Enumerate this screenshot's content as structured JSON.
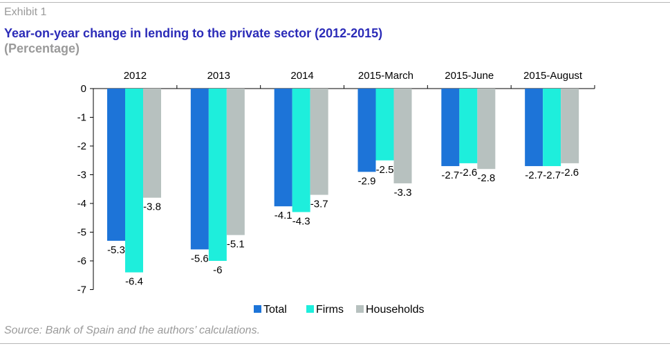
{
  "header": {
    "exhibit": "Exhibit 1",
    "title": "Year-on-year change in lending to the private sector (2012-2015)",
    "subtitle": "(Percentage)"
  },
  "footer": {
    "source": "Source: Bank of Spain and the authors’ calculations."
  },
  "colors": {
    "title": "#2b2bb8",
    "muted": "#9a9a9a",
    "total": "#1d74d8",
    "firms": "#1eeedc",
    "households": "#b7c1bf"
  },
  "chart_data": {
    "type": "bar",
    "categories": [
      "2012",
      "2013",
      "2014",
      "2015-March",
      "2015-June",
      "2015-August"
    ],
    "series": [
      {
        "name": "Total",
        "color": "#1d74d8",
        "values": [
          -5.3,
          -5.6,
          -4.1,
          -2.9,
          -2.7,
          -2.7
        ]
      },
      {
        "name": "Firms",
        "color": "#1eeedc",
        "values": [
          -6.4,
          -6,
          -4.3,
          -2.5,
          -2.6,
          -2.7
        ]
      },
      {
        "name": "Households",
        "color": "#b7c1bf",
        "values": [
          -3.8,
          -5.1,
          -3.7,
          -3.3,
          -2.8,
          -2.6
        ]
      }
    ],
    "ylim": [
      -7,
      0
    ],
    "yticks": [
      0,
      -1,
      -2,
      -3,
      -4,
      -5,
      -6,
      -7
    ],
    "category_axis_position": "top",
    "legend_position": "bottom-center",
    "grid": false
  }
}
